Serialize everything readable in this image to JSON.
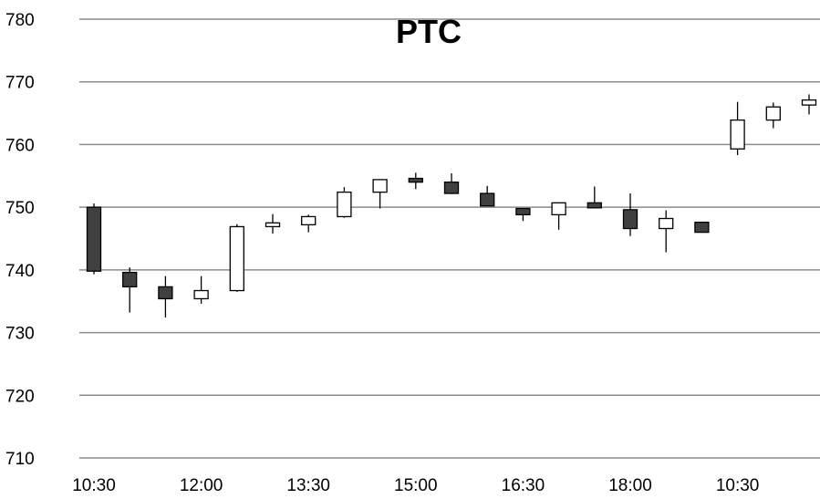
{
  "chart_data": {
    "type": "candlestick",
    "title": "PTC",
    "xlabel": "",
    "ylabel": "",
    "ylim": [
      710,
      780
    ],
    "yticks": [
      710,
      720,
      730,
      740,
      750,
      760,
      770,
      780
    ],
    "grid": true,
    "x_tick_labels": [
      "10:30",
      "12:00",
      "13:30",
      "15:00",
      "16:30",
      "18:00",
      "10:30"
    ],
    "x_tick_every": 3,
    "colors": {
      "up": "#ffffff",
      "down": "#404040",
      "line": "#000000",
      "grid": "#8c8c8c"
    },
    "candles": [
      {
        "open": 750.0,
        "high": 750.6,
        "low": 739.3,
        "close": 739.8
      },
      {
        "open": 739.6,
        "high": 740.4,
        "low": 733.2,
        "close": 737.3
      },
      {
        "open": 737.3,
        "high": 739.0,
        "low": 732.4,
        "close": 735.4
      },
      {
        "open": 735.4,
        "high": 739.0,
        "low": 734.6,
        "close": 736.7
      },
      {
        "open": 736.7,
        "high": 747.3,
        "low": 736.5,
        "close": 746.9
      },
      {
        "open": 746.9,
        "high": 748.9,
        "low": 745.8,
        "close": 747.5
      },
      {
        "open": 747.2,
        "high": 748.8,
        "low": 746.0,
        "close": 748.5
      },
      {
        "open": 748.5,
        "high": 753.2,
        "low": 748.3,
        "close": 752.4
      },
      {
        "open": 752.4,
        "high": 754.4,
        "low": 749.8,
        "close": 754.4
      },
      {
        "open": 754.6,
        "high": 755.5,
        "low": 752.9,
        "close": 754.0
      },
      {
        "open": 754.0,
        "high": 755.4,
        "low": 752.1,
        "close": 752.2
      },
      {
        "open": 752.2,
        "high": 753.4,
        "low": 750.2,
        "close": 750.2
      },
      {
        "open": 749.8,
        "high": 749.8,
        "low": 747.8,
        "close": 748.8
      },
      {
        "open": 748.8,
        "high": 750.7,
        "low": 746.4,
        "close": 750.7
      },
      {
        "open": 750.7,
        "high": 753.3,
        "low": 749.8,
        "close": 749.9
      },
      {
        "open": 749.6,
        "high": 752.2,
        "low": 745.4,
        "close": 746.6
      },
      {
        "open": 746.6,
        "high": 749.5,
        "low": 742.8,
        "close": 748.2
      },
      {
        "open": 747.6,
        "high": 747.6,
        "low": 746.0,
        "close": 746.0
      },
      {
        "open": 759.3,
        "high": 766.8,
        "low": 758.3,
        "close": 763.9
      },
      {
        "open": 763.9,
        "high": 766.7,
        "low": 762.6,
        "close": 766.0
      },
      {
        "open": 766.3,
        "high": 768.0,
        "low": 764.8,
        "close": 767.1
      }
    ]
  }
}
